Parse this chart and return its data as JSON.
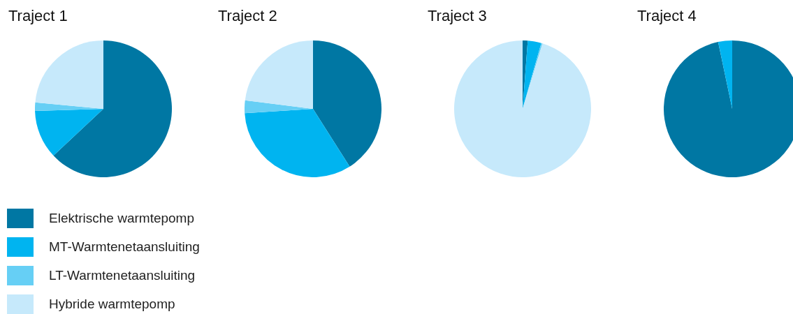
{
  "chart_data": [
    {
      "type": "pie",
      "title": "Traject 1",
      "categories": [
        "Elektrische warmtepomp",
        "MT-Warmtenetaansluiting",
        "LT-Warmtenetaansluiting",
        "Hybride warmtepomp"
      ],
      "values": [
        63,
        11.5,
        2,
        23.5
      ],
      "colors": [
        "#0077a3",
        "#00b4f0",
        "#66cff5",
        "#c6e9fb"
      ],
      "legend": "bottom left"
    },
    {
      "type": "pie",
      "title": "Traject 2",
      "categories": [
        null,
        null,
        null,
        null
      ],
      "values": [
        41,
        33,
        3,
        23
      ],
      "colors": [
        "#0077a3",
        "#00b4f0",
        "#66cff5",
        "#c6e9fb"
      ]
    },
    {
      "type": "pie",
      "title": "Traject 3",
      "categories": [
        null,
        null,
        null,
        null
      ],
      "values": [
        1.2,
        3.2,
        0.3,
        95.3
      ],
      "colors": [
        "#0077a3",
        "#00b4f0",
        "#66cff5",
        "#c6e9fb"
      ]
    },
    {
      "type": "pie",
      "title": "Traject 4",
      "categories": [
        null,
        null,
        null,
        null
      ],
      "values": [
        96.7,
        3.3,
        0,
        0
      ],
      "colors": [
        "#0077a3",
        "#00b4f0",
        "#66cff5",
        "#c6e9fb"
      ]
    }
  ]
}
